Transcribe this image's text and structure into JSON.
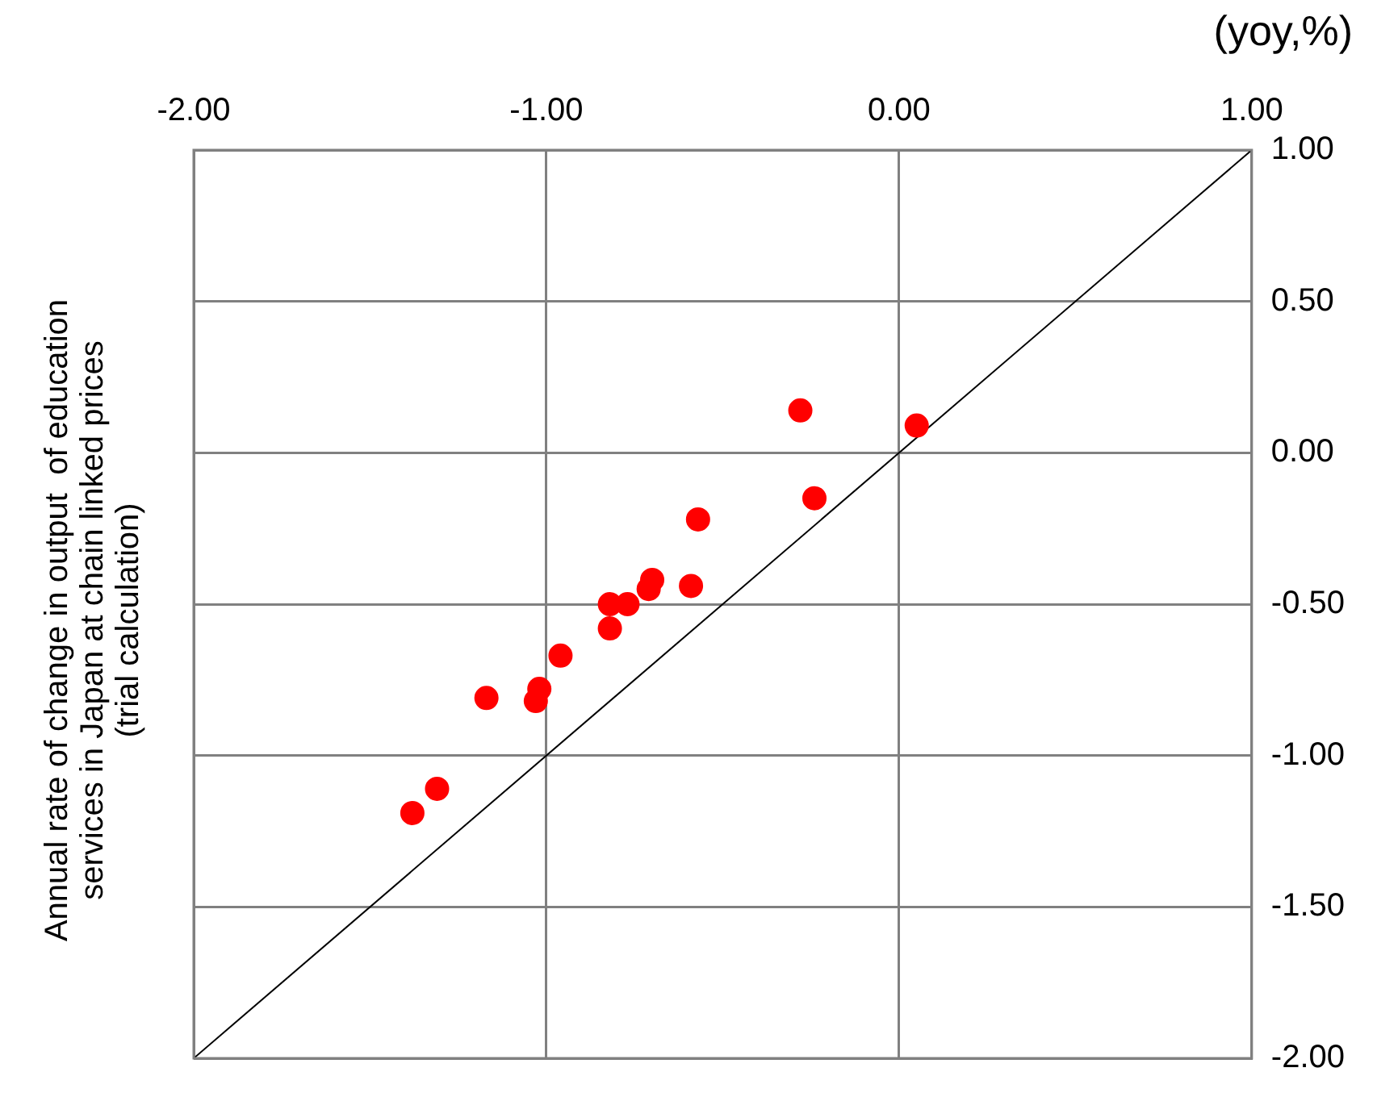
{
  "chart_data": {
    "type": "scatter",
    "ylabel": "Annual rate of change in output  of education\nservices in Japan at chain linked prices\n(trial calculation)",
    "annotations": [
      "(yoy,%)"
    ],
    "xlim": [
      -2,
      1
    ],
    "xticks": [
      {
        "value": -2,
        "label": "-2.00"
      },
      {
        "value": -1,
        "label": "-1.00"
      },
      {
        "value": 0,
        "label": "0.00"
      },
      {
        "value": 1,
        "label": "1.00"
      }
    ],
    "ylim": [
      -2,
      1
    ],
    "yticks": [
      {
        "value": -2,
        "label": "-2.00"
      },
      {
        "value": -1.5,
        "label": "-1.50"
      },
      {
        "value": -1,
        "label": "-1.00"
      },
      {
        "value": -0.5,
        "label": "-0.50"
      },
      {
        "value": 0,
        "label": "0.00"
      },
      {
        "value": 0.5,
        "label": "0.50"
      },
      {
        "value": 1,
        "label": "1.00"
      }
    ],
    "grid": true,
    "legend": false,
    "marker": "circle",
    "series": [
      {
        "color": "#ff0000",
        "x": [
          0.05,
          -0.28,
          -0.24,
          -0.57,
          -0.7,
          -0.71,
          -0.59,
          -0.82,
          -0.77,
          -0.82,
          -0.96,
          -1.02,
          -1.03,
          -1.17,
          -1.31,
          -1.38
        ],
        "values": [
          0.09,
          0.14,
          -0.15,
          -0.22,
          -0.42,
          -0.45,
          -0.44,
          -0.5,
          -0.5,
          -0.58,
          -0.67,
          -0.78,
          -0.82,
          -0.81,
          -1.11,
          -1.19
        ]
      },
      {
        "type": "line",
        "color": "#000000",
        "marker": "none",
        "x": [
          -2,
          1
        ],
        "values": [
          -2,
          1
        ]
      }
    ]
  }
}
